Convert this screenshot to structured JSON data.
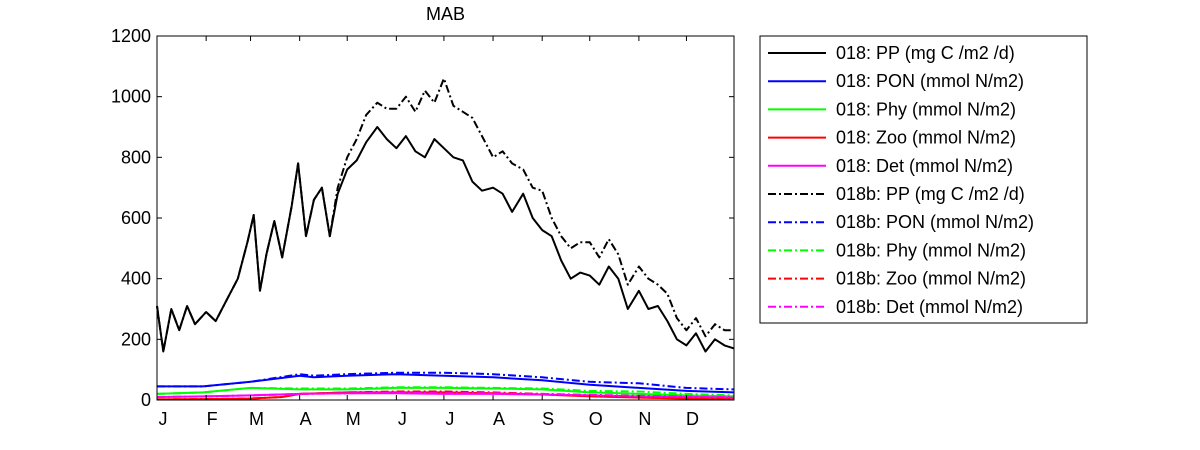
{
  "chart_data": {
    "type": "line",
    "title": "MAB",
    "xlabel": "",
    "ylabel": "",
    "ylim": [
      0,
      1200
    ],
    "yticks": [
      0,
      200,
      400,
      600,
      800,
      1000,
      1200
    ],
    "xlim": [
      1,
      365
    ],
    "xticks": [
      {
        "label": "J",
        "day": 1
      },
      {
        "label": "F",
        "day": 32
      },
      {
        "label": "M",
        "day": 60
      },
      {
        "label": "A",
        "day": 91
      },
      {
        "label": "M",
        "day": 121
      },
      {
        "label": "J",
        "day": 152
      },
      {
        "label": "J",
        "day": 182
      },
      {
        "label": "A",
        "day": 213
      },
      {
        "label": "S",
        "day": 244
      },
      {
        "label": "O",
        "day": 274
      },
      {
        "label": "N",
        "day": 305
      },
      {
        "label": "D",
        "day": 335
      }
    ],
    "grid": false,
    "legend_position": "outside-right",
    "series": [
      {
        "name": "018: PP (mg C /m2 /d)",
        "color": "#000000",
        "dash": "solid",
        "days": [
          1,
          5,
          10,
          15,
          20,
          25,
          32,
          38,
          45,
          52,
          58,
          62,
          66,
          70,
          75,
          80,
          86,
          90,
          95,
          100,
          105,
          110,
          115,
          121,
          127,
          133,
          140,
          146,
          152,
          158,
          164,
          170,
          176,
          182,
          188,
          194,
          200,
          206,
          213,
          219,
          225,
          232,
          238,
          244,
          250,
          256,
          262,
          268,
          274,
          280,
          286,
          292,
          298,
          305,
          311,
          317,
          323,
          329,
          335,
          341,
          347,
          353,
          359,
          365
        ],
        "values": [
          310,
          160,
          300,
          230,
          310,
          250,
          290,
          260,
          330,
          400,
          520,
          610,
          360,
          480,
          590,
          470,
          640,
          780,
          540,
          660,
          700,
          540,
          680,
          760,
          790,
          850,
          900,
          860,
          830,
          870,
          820,
          800,
          860,
          830,
          800,
          790,
          720,
          690,
          700,
          680,
          620,
          680,
          600,
          560,
          540,
          460,
          400,
          420,
          410,
          380,
          440,
          400,
          300,
          360,
          300,
          310,
          260,
          200,
          180,
          220,
          160,
          200,
          180,
          170
        ]
      },
      {
        "name": "018: PON (mmol N/m2)",
        "color": "#0000ff",
        "dash": "solid",
        "days": [
          1,
          30,
          60,
          91,
          100,
          121,
          152,
          182,
          213,
          244,
          274,
          305,
          335,
          365
        ],
        "values": [
          45,
          45,
          60,
          80,
          75,
          80,
          85,
          80,
          75,
          65,
          50,
          40,
          30,
          25
        ]
      },
      {
        "name": "018: Phy (mmol N/m2)",
        "color": "#00ff00",
        "dash": "solid",
        "days": [
          1,
          30,
          60,
          91,
          121,
          152,
          182,
          213,
          244,
          274,
          305,
          335,
          365
        ],
        "values": [
          20,
          25,
          40,
          35,
          35,
          40,
          40,
          38,
          35,
          25,
          20,
          15,
          12
        ]
      },
      {
        "name": "018: Zoo (mmol N/m2)",
        "color": "#ff0000",
        "dash": "solid",
        "days": [
          1,
          30,
          60,
          80,
          91,
          121,
          152,
          182,
          213,
          244,
          274,
          305,
          335,
          365
        ],
        "values": [
          2,
          3,
          5,
          10,
          20,
          25,
          25,
          25,
          22,
          18,
          12,
          8,
          5,
          3
        ]
      },
      {
        "name": "018: Det (mmol N/m2)",
        "color": "#ff00ff",
        "dash": "solid",
        "days": [
          1,
          30,
          60,
          91,
          121,
          152,
          182,
          213,
          244,
          274,
          305,
          335,
          365
        ],
        "values": [
          10,
          12,
          15,
          20,
          22,
          22,
          20,
          20,
          18,
          15,
          12,
          10,
          8
        ]
      },
      {
        "name": "018b: PP (mg C /m2 /d)",
        "color": "#000000",
        "dash": "dashdot",
        "days": [
          1,
          5,
          10,
          15,
          20,
          25,
          32,
          38,
          45,
          52,
          58,
          62,
          66,
          70,
          75,
          80,
          86,
          90,
          95,
          100,
          105,
          110,
          115,
          121,
          127,
          133,
          140,
          146,
          152,
          158,
          164,
          170,
          176,
          182,
          188,
          194,
          200,
          206,
          213,
          219,
          225,
          232,
          238,
          244,
          250,
          256,
          262,
          268,
          274,
          280,
          286,
          292,
          298,
          305,
          311,
          317,
          323,
          329,
          335,
          341,
          347,
          353,
          359,
          365
        ],
        "values": [
          310,
          160,
          300,
          230,
          310,
          250,
          290,
          260,
          330,
          400,
          520,
          610,
          360,
          480,
          590,
          470,
          640,
          780,
          540,
          660,
          700,
          540,
          700,
          800,
          860,
          940,
          980,
          960,
          960,
          1000,
          950,
          1020,
          980,
          1060,
          970,
          950,
          930,
          870,
          800,
          820,
          780,
          760,
          700,
          690,
          600,
          540,
          500,
          520,
          520,
          470,
          530,
          480,
          380,
          440,
          400,
          380,
          350,
          270,
          230,
          270,
          210,
          250,
          230,
          230
        ]
      },
      {
        "name": "018b: PON (mmol N/m2)",
        "color": "#0000ff",
        "dash": "dashdot",
        "days": [
          1,
          30,
          60,
          91,
          100,
          121,
          152,
          182,
          213,
          244,
          274,
          305,
          335,
          365
        ],
        "values": [
          45,
          45,
          60,
          85,
          80,
          85,
          90,
          90,
          85,
          75,
          60,
          55,
          40,
          35
        ]
      },
      {
        "name": "018b: Phy (mmol N/m2)",
        "color": "#00ff00",
        "dash": "dashdot",
        "days": [
          1,
          30,
          60,
          91,
          121,
          152,
          182,
          213,
          244,
          274,
          305,
          335,
          365
        ],
        "values": [
          20,
          25,
          40,
          38,
          38,
          42,
          42,
          40,
          38,
          30,
          28,
          20,
          15
        ]
      },
      {
        "name": "018b: Zoo (mmol N/m2)",
        "color": "#ff0000",
        "dash": "dashdot",
        "days": [
          1,
          30,
          60,
          80,
          91,
          121,
          152,
          182,
          213,
          244,
          274,
          305,
          335,
          365
        ],
        "values": [
          2,
          3,
          5,
          10,
          20,
          25,
          28,
          28,
          25,
          20,
          15,
          12,
          8,
          5
        ]
      },
      {
        "name": "018b: Det (mmol N/m2)",
        "color": "#ff00ff",
        "dash": "dashdot",
        "days": [
          1,
          30,
          60,
          91,
          121,
          152,
          182,
          213,
          244,
          274,
          305,
          335,
          365
        ],
        "values": [
          10,
          12,
          15,
          20,
          22,
          24,
          22,
          22,
          20,
          17,
          14,
          12,
          10
        ]
      }
    ]
  }
}
